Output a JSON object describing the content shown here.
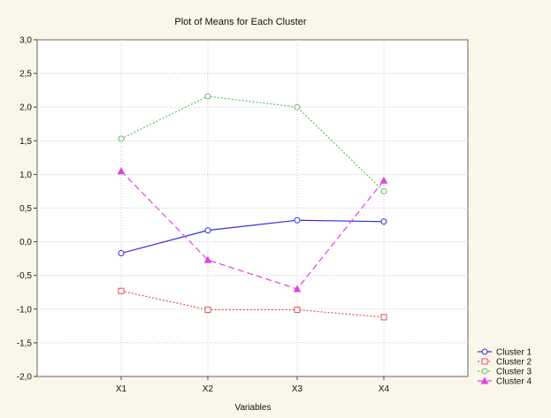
{
  "chart_data": {
    "type": "line",
    "title": "Plot of Means for Each Cluster",
    "xlabel": "Variables",
    "ylabel": "",
    "categories": [
      "X1",
      "X2",
      "X3",
      "X4"
    ],
    "ylim": [
      -2.0,
      3.0
    ],
    "yticks": [
      -2.0,
      -1.5,
      -1.0,
      -0.5,
      0.0,
      0.5,
      1.0,
      1.5,
      2.0,
      2.5,
      3.0
    ],
    "ytick_labels": [
      "-2,0",
      "-1,5",
      "-1,0",
      "-0,5",
      "0,0",
      "0,5",
      "1,0",
      "1,5",
      "2,0",
      "2,5",
      "3,0"
    ],
    "grid": true,
    "legend_position": "bottom-right",
    "series": [
      {
        "name": "Cluster 1",
        "values": [
          -0.17,
          0.17,
          0.32,
          0.3
        ],
        "color": "#3333cc",
        "marker": "circle",
        "dash": "solid"
      },
      {
        "name": "Cluster 2",
        "values": [
          -0.73,
          -1.01,
          -1.01,
          -1.12
        ],
        "color": "#e05555",
        "marker": "square",
        "dash": "dotted"
      },
      {
        "name": "Cluster 3",
        "values": [
          1.53,
          2.16,
          2.0,
          0.75
        ],
        "color": "#66bb66",
        "marker": "circle",
        "dash": "dotted"
      },
      {
        "name": "Cluster 4",
        "values": [
          1.05,
          -0.27,
          -0.7,
          0.91
        ],
        "color": "#dd44dd",
        "marker": "triangle",
        "dash": "dashed"
      }
    ]
  }
}
